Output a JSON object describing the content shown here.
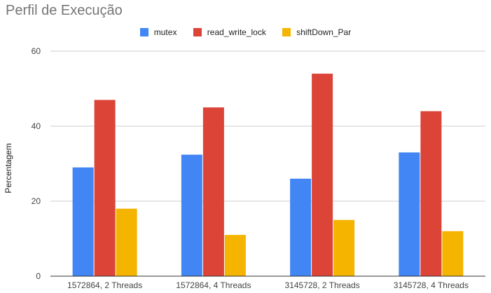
{
  "chart_data": {
    "type": "bar",
    "title": "Perfil de Execução",
    "ylabel": "Percentagem",
    "xlabel": "",
    "categories": [
      "1572864, 2 Threads",
      "1572864, 4 Threads",
      "3145728, 2 Threads",
      "3145728, 4 Threads"
    ],
    "series": [
      {
        "name": "mutex",
        "color": "#4285f4",
        "values": [
          29,
          32.4,
          26,
          33
        ]
      },
      {
        "name": "read_write_lock",
        "color": "#db4437",
        "values": [
          47,
          45,
          54,
          44
        ]
      },
      {
        "name": "shiftDown_Par",
        "color": "#f4b400",
        "values": [
          18,
          11,
          15,
          12
        ]
      }
    ],
    "ylim": [
      0,
      60
    ],
    "yticks": [
      "0",
      "20",
      "40",
      "60"
    ],
    "grid": true,
    "legend_position": "top"
  }
}
